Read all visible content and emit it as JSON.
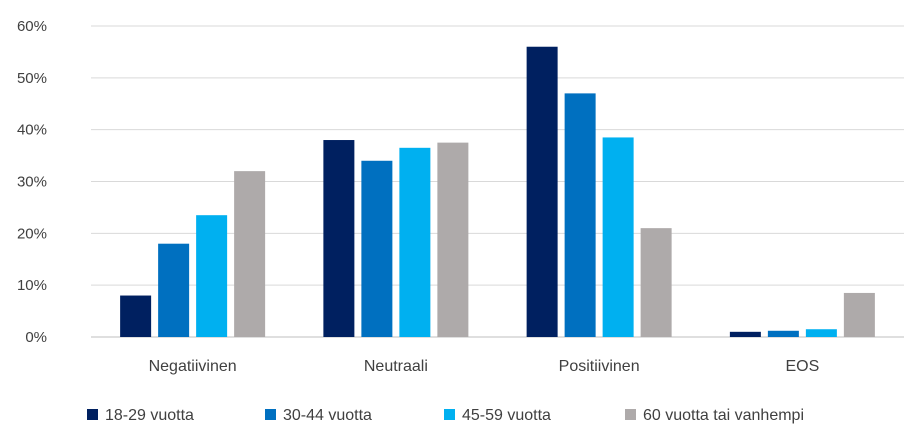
{
  "chart_data": {
    "type": "bar",
    "categories": [
      "Negatiivinen",
      "Neutraali",
      "Positiivinen",
      "EOS"
    ],
    "series": [
      {
        "name": "18-29 vuotta",
        "color": "#002060",
        "values": [
          8,
          38,
          56,
          1
        ]
      },
      {
        "name": "30-44 vuotta",
        "color": "#0070c0",
        "values": [
          18,
          34,
          47,
          1.2
        ]
      },
      {
        "name": "45-59 vuotta",
        "color": "#00b0f0",
        "values": [
          23.5,
          36.5,
          38.5,
          1.5
        ]
      },
      {
        "name": "60 vuotta tai vanhempi",
        "color": "#aeaaaa",
        "values": [
          32,
          37.5,
          21,
          8.5
        ]
      }
    ],
    "y_ticks": [
      "0%",
      "10%",
      "20%",
      "30%",
      "40%",
      "50%",
      "60%"
    ],
    "ylim": [
      0,
      60
    ],
    "grid": true,
    "legend_position": "bottom"
  }
}
